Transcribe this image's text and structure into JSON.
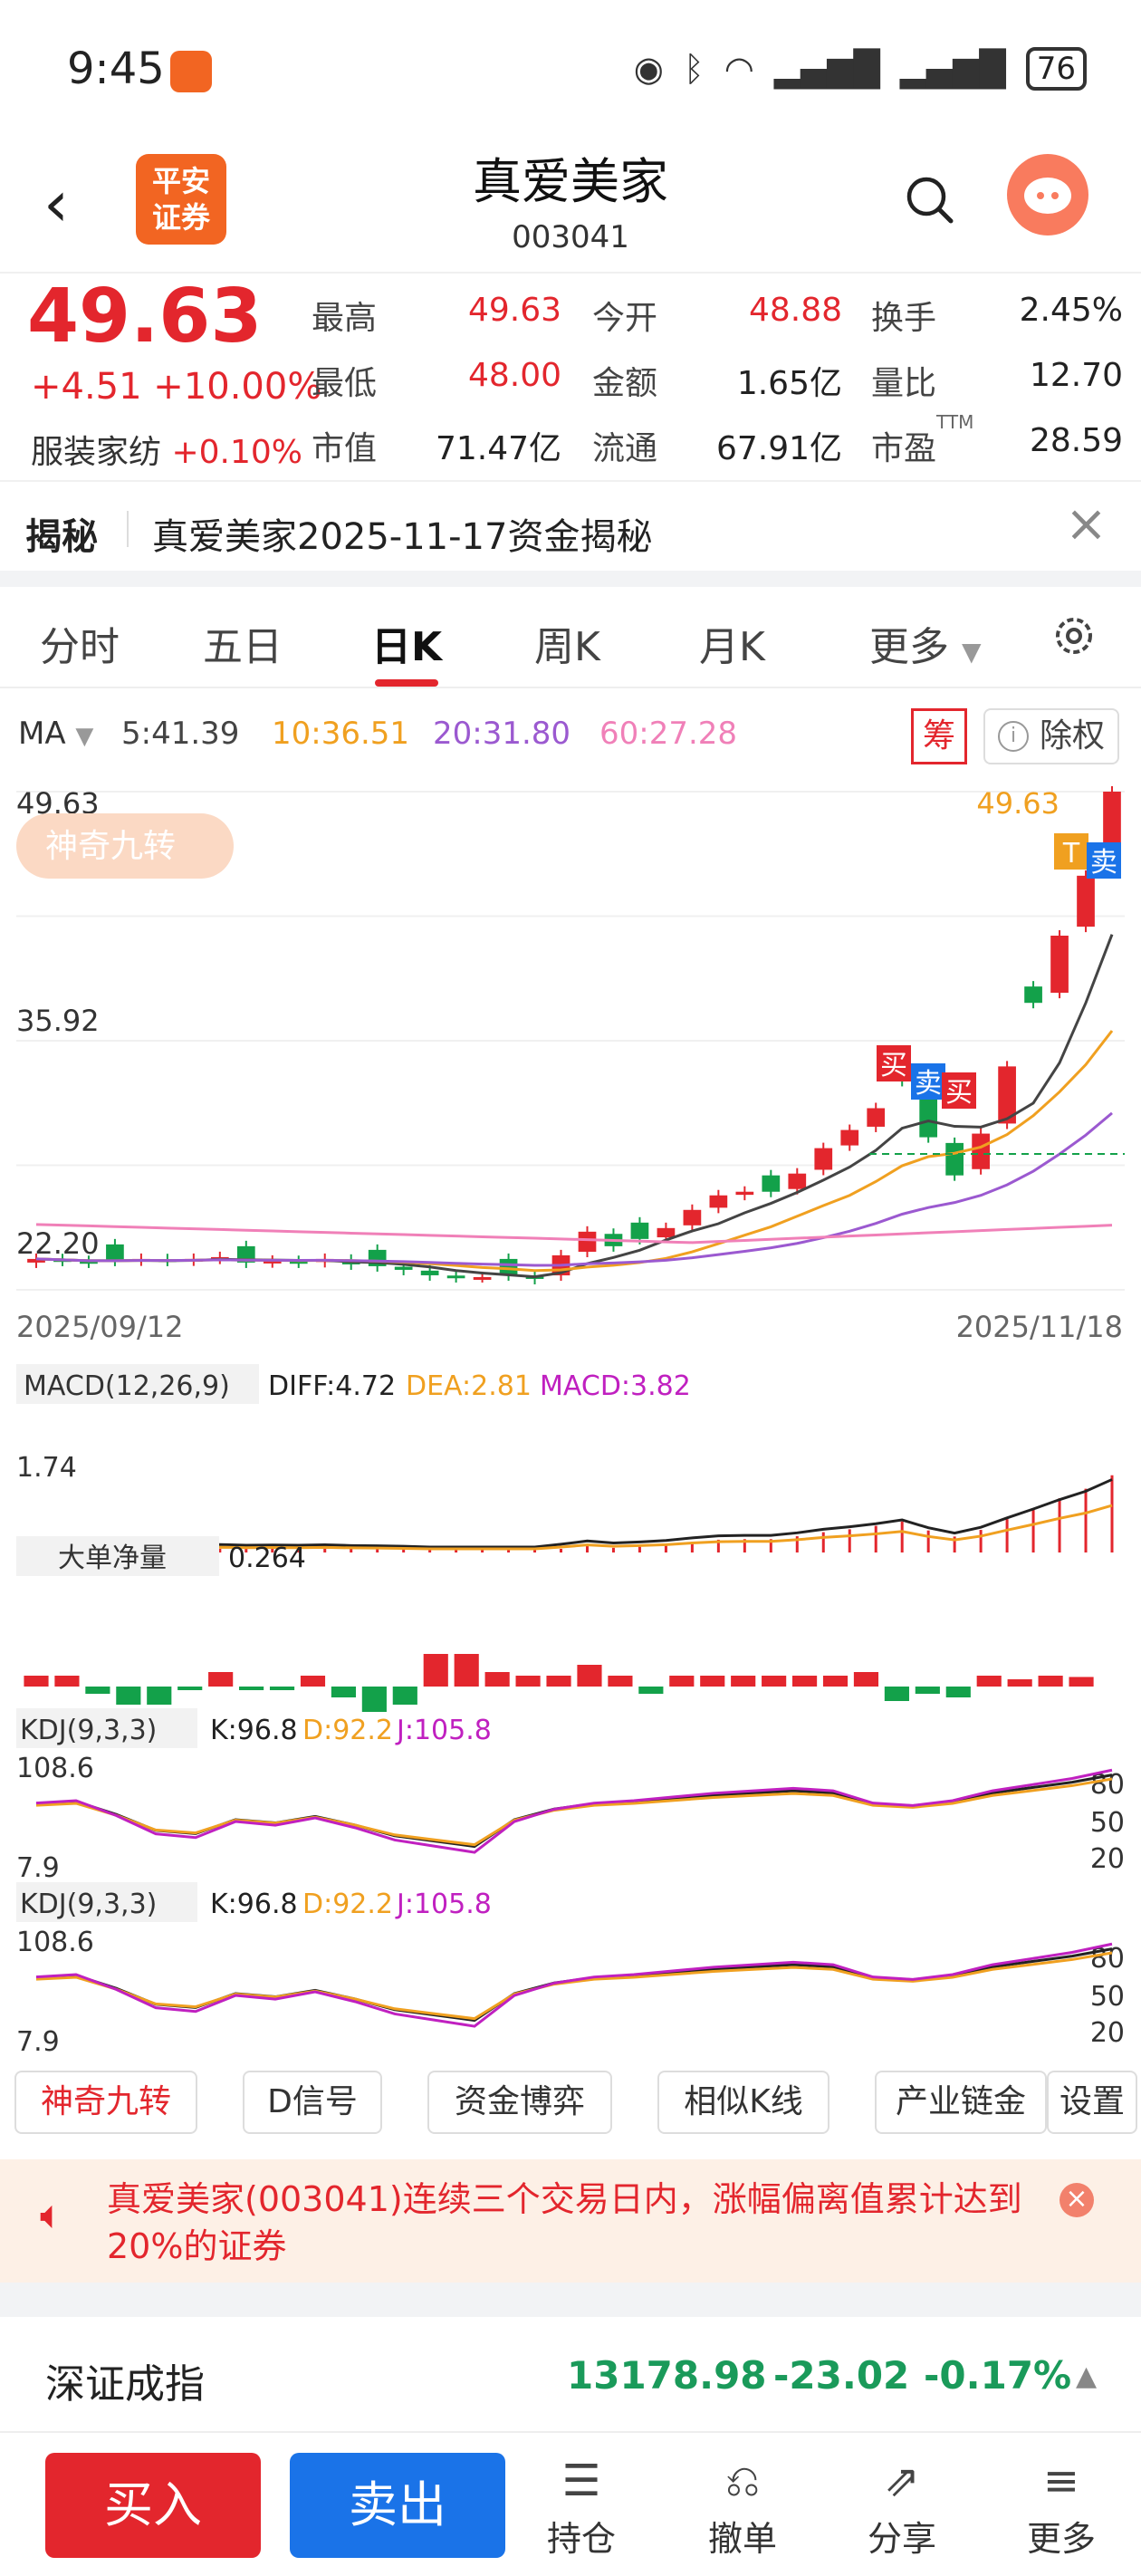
{
  "status": {
    "time": "9:45",
    "battery": "76"
  },
  "header": {
    "logo_line1": "平安",
    "logo_line2": "证券",
    "name": "真爱美家",
    "code": "003041"
  },
  "quote": {
    "price": "49.63",
    "change": "+4.51",
    "change_pct": "+10.00%",
    "industry": "服装家纺",
    "industry_pct": "+0.10%",
    "cells": [
      {
        "label": "最高",
        "value": "49.63",
        "color": "#e3262d"
      },
      {
        "label": "今开",
        "value": "48.88",
        "color": "#e3262d"
      },
      {
        "label": "换手",
        "value": "2.45%",
        "color": "#222222"
      },
      {
        "label": "最低",
        "value": "48.00",
        "color": "#e3262d"
      },
      {
        "label": "金额",
        "value": "1.65亿",
        "color": "#222222"
      },
      {
        "label": "量比",
        "value": "12.70",
        "color": "#222222"
      },
      {
        "label": "市值",
        "value": "71.47亿",
        "color": "#222222"
      },
      {
        "label": "流通",
        "value": "67.91亿",
        "color": "#222222"
      },
      {
        "label": "市盈",
        "value": "28.59",
        "color": "#222222",
        "sup": "TTM"
      }
    ]
  },
  "reveal": {
    "tag": "揭秘",
    "text": "真爱美家2025-11-17资金揭秘"
  },
  "tabs": [
    "分时",
    "五日",
    "日K",
    "周K",
    "月K",
    "更多"
  ],
  "active_tab": "日K",
  "ma": {
    "label": "MA",
    "items": [
      {
        "text": "5:41.39",
        "color": "#444444"
      },
      {
        "text": "10:36.51",
        "color": "#f0a020"
      },
      {
        "text": "20:31.80",
        "color": "#9b59d0"
      },
      {
        "text": "60:27.28",
        "color": "#f080b8"
      }
    ],
    "chou": "筹",
    "chuquan": "除权"
  },
  "chart_labels": {
    "magic9": "神奇九转",
    "y_top": "49.63",
    "y_mid": "35.92",
    "y_low": "22.20",
    "last_price": "49.63",
    "date_start": "2025/09/12",
    "date_end": "2025/11/18",
    "macd_title": "MACD(12,26,9)",
    "diff": "DIFF:4.72",
    "dea": "DEA:2.81",
    "macd": "MACD:3.82",
    "macd_y": "1.74",
    "big_title": "大单净量",
    "big_val": "0.264",
    "kdj_title": "KDJ(9,3,3)",
    "k": "K:96.8",
    "d": "D:92.2",
    "j": "J:105.8",
    "kdj_top": "108.6",
    "kdj_bot": "7.9",
    "kdj_levels": [
      "80",
      "50",
      "20"
    ],
    "signal_buy": "买",
    "signal_sell": "卖",
    "signal_t": "T"
  },
  "chart_data": {
    "type": "candlestick",
    "x_range": [
      "2025/09/12",
      "2025/11/18"
    ],
    "ylim": [
      22.2,
      49.63
    ],
    "ma": {
      "MA5": 41.39,
      "MA10": 36.51,
      "MA20": 31.8,
      "MA60": 27.28
    },
    "last_close": 49.63,
    "macd": {
      "DIFF": 4.72,
      "DEA": 2.81,
      "MACD": 3.82
    },
    "big_order_net": 0.264,
    "kdj": {
      "K": 96.8,
      "D": 92.2,
      "J": 105.8
    }
  },
  "tools": [
    "神奇九转",
    "D信号",
    "资金博弈",
    "相似K线",
    "产业链金",
    "设置"
  ],
  "notice": "真爱美家(003041)连续三个交易日内，涨幅偏离值累计达到20%的证券",
  "index": {
    "name": "深证成指",
    "value": "13178.98",
    "change": "-23.02",
    "pct": "-0.17%"
  },
  "bottom": {
    "buy": "买入",
    "sell": "卖出",
    "items": [
      "持仓",
      "撤单",
      "分享",
      "更多"
    ]
  }
}
